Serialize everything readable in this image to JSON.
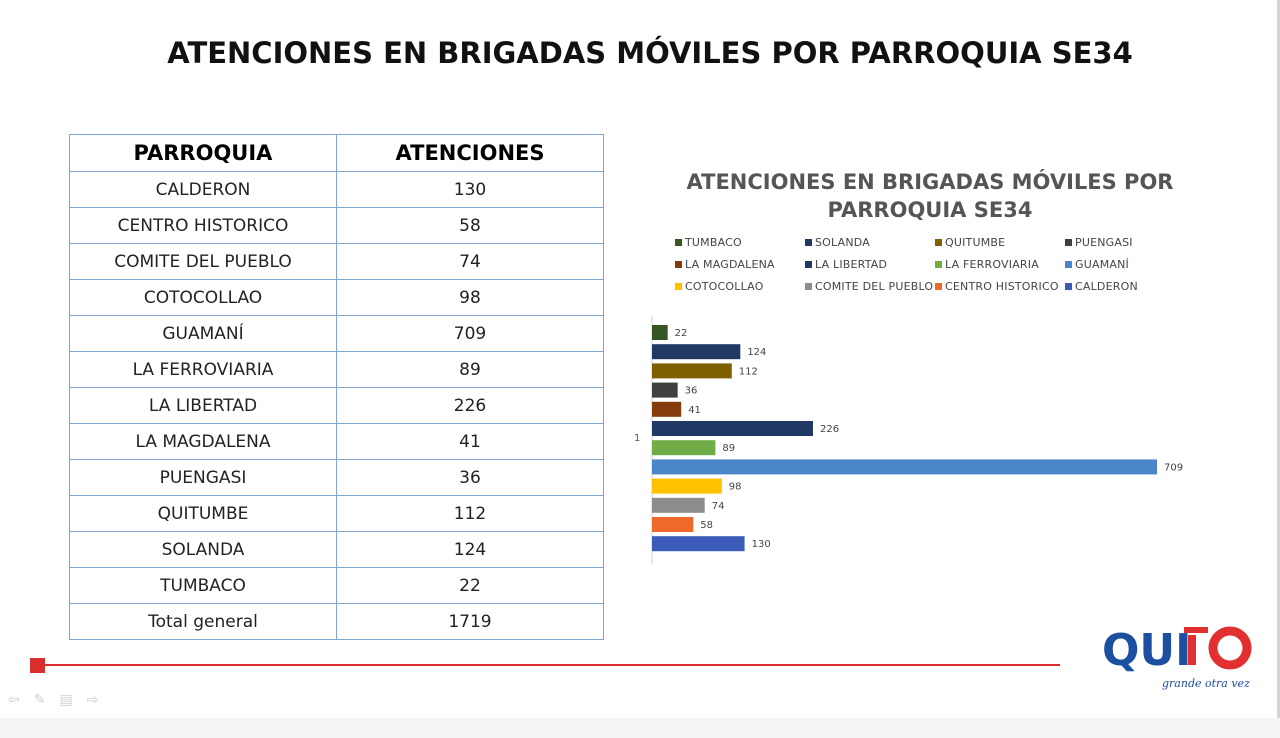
{
  "slide": {
    "title": "ATENCIONES EN BRIGADAS MÓVILES POR PARROQUIA SE34"
  },
  "table": {
    "headers": [
      "PARROQUIA",
      "ATENCIONES"
    ],
    "rows": [
      [
        "CALDERON",
        "130"
      ],
      [
        "CENTRO HISTORICO",
        "58"
      ],
      [
        "COMITE DEL PUEBLO",
        "74"
      ],
      [
        "COTOCOLLAO",
        "98"
      ],
      [
        "GUAMANÍ",
        "709"
      ],
      [
        "LA FERROVIARIA",
        "89"
      ],
      [
        "LA LIBERTAD",
        "226"
      ],
      [
        "LA MAGDALENA",
        "41"
      ],
      [
        "PUENGASI",
        "36"
      ],
      [
        "QUITUMBE",
        "112"
      ],
      [
        "SOLANDA",
        "124"
      ],
      [
        "TUMBACO",
        "22"
      ],
      [
        "Total general",
        "1719"
      ]
    ]
  },
  "chart_data": {
    "type": "bar",
    "orientation": "horizontal",
    "title": "ATENCIONES EN BRIGADAS MÓVILES POR PARROQUIA SE34",
    "categories": [
      "1"
    ],
    "xlim": [
      0,
      709
    ],
    "legend_position": "top",
    "grid": false,
    "series": [
      {
        "name": "TUMBACO",
        "values": [
          22
        ],
        "color": "#375623"
      },
      {
        "name": "SOLANDA",
        "values": [
          124
        ],
        "color": "#1f3864"
      },
      {
        "name": "QUITUMBE",
        "values": [
          112
        ],
        "color": "#7f6000"
      },
      {
        "name": "PUENGASI",
        "values": [
          36
        ],
        "color": "#404040"
      },
      {
        "name": "LA MAGDALENA",
        "values": [
          41
        ],
        "color": "#843c0c"
      },
      {
        "name": "LA LIBERTAD",
        "values": [
          226
        ],
        "color": "#203864"
      },
      {
        "name": "LA FERROVIARIA",
        "values": [
          89
        ],
        "color": "#70ad47"
      },
      {
        "name": "GUAMANÍ",
        "values": [
          709
        ],
        "color": "#4a86c8"
      },
      {
        "name": "COTOCOLLAO",
        "values": [
          98
        ],
        "color": "#ffc000"
      },
      {
        "name": "COMITE DEL PUEBLO",
        "values": [
          74
        ],
        "color": "#8c8c8c"
      },
      {
        "name": "CENTRO HISTORICO",
        "values": [
          58
        ],
        "color": "#ed6a2b"
      },
      {
        "name": "CALDERON",
        "values": [
          130
        ],
        "color": "#3a5bb7"
      }
    ]
  },
  "logo": {
    "brand_text": "QUITO",
    "tagline": "grande otra vez",
    "colors": {
      "blue": "#1c4fa0",
      "red": "#e03030"
    }
  },
  "nav": {
    "icons": [
      "arrow-left-icon",
      "pen-icon",
      "slides-icon",
      "arrow-right-icon"
    ]
  }
}
